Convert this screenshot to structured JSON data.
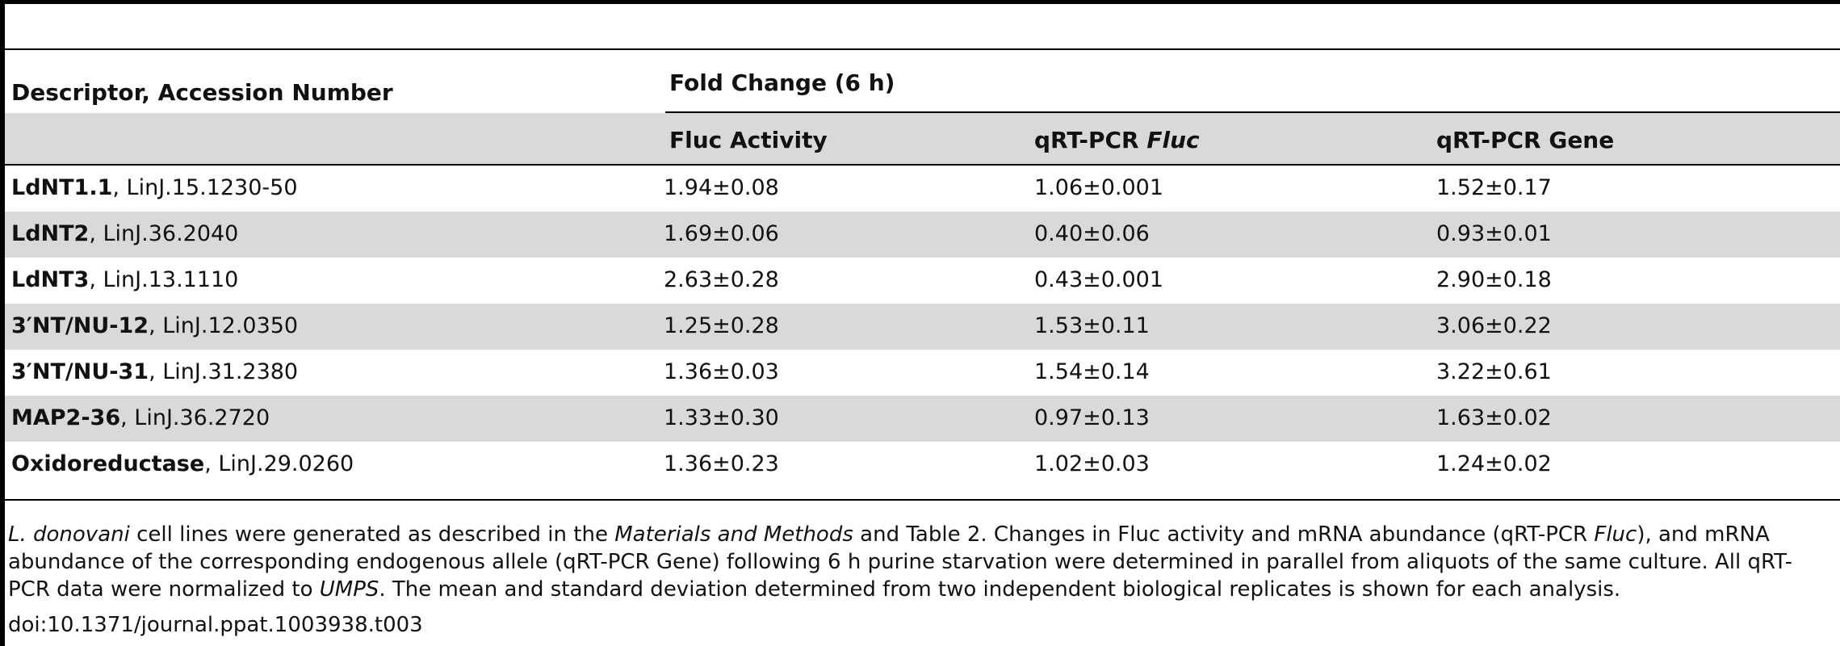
{
  "table": {
    "header": {
      "descriptor": "Descriptor, Accession Number",
      "group": "Fold Change (6 h)",
      "col1": "Fluc Activity",
      "col2_prefix": "qRT-PCR ",
      "col2_italic": "Fluc",
      "col3": "qRT-PCR Gene"
    },
    "rows": [
      {
        "name": "LdNT1.1",
        "accession": ", LinJ.15.1230-50",
        "fluc": "1.94±0.08",
        "qfluc": "1.06±0.001",
        "qgene": "1.52±0.17"
      },
      {
        "name": "LdNT2",
        "accession": ", LinJ.36.2040",
        "fluc": "1.69±0.06",
        "qfluc": "0.40±0.06",
        "qgene": "0.93±0.01"
      },
      {
        "name": "LdNT3",
        "accession": ", LinJ.13.1110",
        "fluc": "2.63±0.28",
        "qfluc": "0.43±0.001",
        "qgene": "2.90±0.18"
      },
      {
        "name": "3′NT/NU-12",
        "accession": ", LinJ.12.0350",
        "fluc": "1.25±0.28",
        "qfluc": "1.53±0.11",
        "qgene": "3.06±0.22"
      },
      {
        "name": "3′NT/NU-31",
        "accession": ", LinJ.31.2380",
        "fluc": "1.36±0.03",
        "qfluc": "1.54±0.14",
        "qgene": "3.22±0.61"
      },
      {
        "name": "MAP2-36",
        "accession": ", LinJ.36.2720",
        "fluc": "1.33±0.30",
        "qfluc": "0.97±0.13",
        "qgene": "1.63±0.02"
      },
      {
        "name": "Oxidoreductase",
        "accession": ", LinJ.29.0260",
        "fluc": "1.36±0.23",
        "qfluc": "1.02±0.03",
        "qgene": "1.24±0.02"
      }
    ]
  },
  "footnote": {
    "s1_italic": "L. donovani",
    "s2": " cell lines were generated as described in the ",
    "s3_italic": "Materials and Methods",
    "s4": " and Table 2. Changes in Fluc activity and mRNA abundance (qRT-PCR ",
    "s5_italic": "Fluc",
    "s6": "), and mRNA abundance of the corresponding endogenous allele (qRT-PCR Gene) following 6 h purine starvation were determined in parallel from aliquots of the same culture. All qRT-PCR data were normalized to ",
    "s7_italic": "UMPS",
    "s8": ". The mean and standard deviation determined from two independent biological replicates is shown for each analysis.",
    "doi": "doi:10.1371/journal.ppat.1003938.t003"
  }
}
